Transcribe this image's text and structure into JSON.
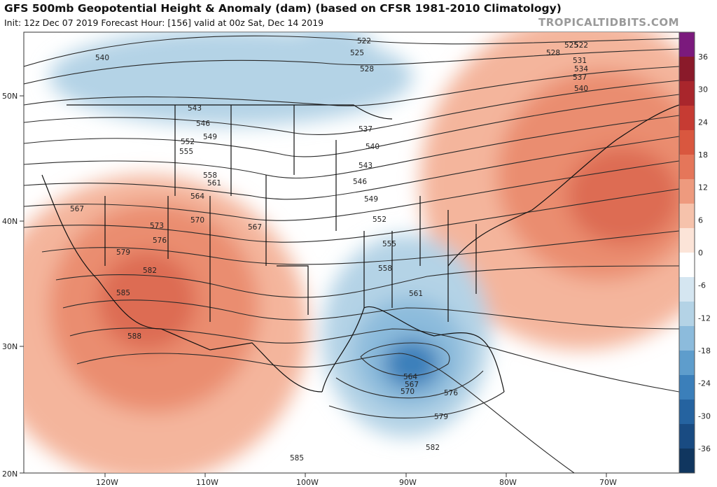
{
  "header": {
    "title": "GFS 500mb Geopotential Height & Anomaly (dam) (based on CFSR 1981-2010 Climatology)",
    "subtitle": "Init: 12z Dec 07 2019   Forecast Hour: [156]   valid at 00z Sat, Dec 14 2019",
    "brand": "TROPICALTIDBITS.COM"
  },
  "axes": {
    "lat_labels": [
      "50N",
      "40N",
      "30N",
      "20N"
    ],
    "lon_labels": [
      "120W",
      "110W",
      "100W",
      "90W",
      "80W",
      "70W"
    ]
  },
  "colorbar": {
    "labels": [
      "36",
      "30",
      "24",
      "18",
      "12",
      "6",
      "0",
      "-6",
      "-12",
      "-18",
      "-24",
      "-30",
      "-36"
    ],
    "colors": [
      "#7b1a7d",
      "#8a1a2a",
      "#a9262c",
      "#c63b33",
      "#d9573f",
      "#e5765a",
      "#ee9a7e",
      "#f6c2ab",
      "#fce4d8",
      "#ffffff",
      "#d5e6f1",
      "#b4d3e6",
      "#8cbbdc",
      "#5e9dcc",
      "#3b7fba",
      "#2563a0",
      "#194b82",
      "#10365f"
    ]
  },
  "contours": {
    "labels": [
      "522",
      "525",
      "528",
      "531",
      "534",
      "537",
      "540",
      "543",
      "546",
      "549",
      "552",
      "555",
      "558",
      "561",
      "564",
      "567",
      "570",
      "573",
      "576",
      "579",
      "582",
      "585",
      "588"
    ],
    "low_center_labels": [
      "564",
      "567",
      "570"
    ]
  },
  "colors": {
    "positive_anomaly": "#e8856a",
    "negative_anomaly": "#5e9dcc",
    "contour_line": "#2a2a2a",
    "border_line": "#111111"
  }
}
